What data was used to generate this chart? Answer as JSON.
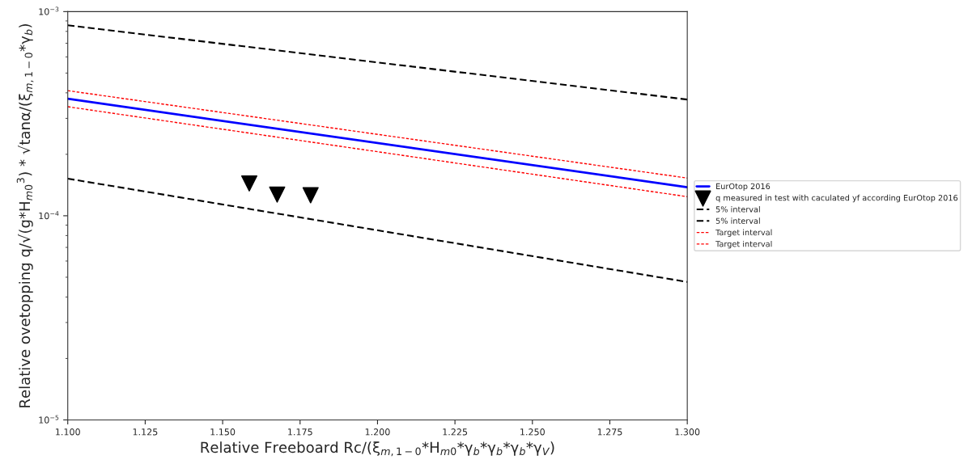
{
  "chart_data": {
    "type": "line",
    "xlabel": "Relative Freeboard Rc/(ξ$_{m,1−0}$*H$_{m0}$*γ$_{b}$*γ$_{b}$*γ$_{b}$*γ$_{V}$)",
    "ylabel": "Relative ovetopping q/√(g*H$_{m0}$$^{3}$) * √tanα/(ξ$_{m,1−0}$*γ$_{b}$)",
    "log": "y",
    "grid": false,
    "legend": "right",
    "xlim": [
      1.1,
      1.3
    ],
    "xticks": [
      {
        "value": 1.1,
        "label": "1.100"
      },
      {
        "value": 1.125,
        "label": "1.125"
      },
      {
        "value": 1.15,
        "label": "1.150"
      },
      {
        "value": 1.175,
        "label": "1.175"
      },
      {
        "value": 1.2,
        "label": "1.200"
      },
      {
        "value": 1.225,
        "label": "1.225"
      },
      {
        "value": 1.25,
        "label": "1.250"
      },
      {
        "value": 1.275,
        "label": "1.275"
      },
      {
        "value": 1.3,
        "label": "1.300"
      }
    ],
    "ylim": [
      1e-05,
      0.001
    ],
    "yticks": [
      {
        "value": 1e-05,
        "label": "10$^{−5}$"
      },
      {
        "value": 0.0001,
        "label": "10$^{−4}$"
      },
      {
        "value": 0.001,
        "label": "10$^{−3}$"
      }
    ],
    "series": [
      {
        "name": "EurOtop 2016",
        "color": "#0000ff",
        "line_style": "solid",
        "marker": "none",
        "x": [
          1.1,
          1.3
        ],
        "values": [
          0.000374,
          0.000138
        ]
      },
      {
        "name": "q measured in test with caculated yf according EurOtop 2016",
        "type": "scatter",
        "color": "#000000",
        "marker": "triangle",
        "x": [
          1.1586,
          1.1676,
          1.1784
        ],
        "values": [
          0.000144,
          0.000127,
          0.000126
        ]
      },
      {
        "name": "5% interval",
        "color": "#000000",
        "line_style": "dashed",
        "marker": "none",
        "x": [
          1.1,
          1.3
        ],
        "values": [
          0.000857,
          0.000371
        ]
      },
      {
        "name": "5% interval",
        "color": "#000000",
        "line_style": "dashed",
        "marker": "none",
        "x": [
          1.1,
          1.3
        ],
        "values": [
          0.000152,
          4.74e-05
        ]
      },
      {
        "name": "Target interval",
        "color": "#ff0000",
        "line_style": "dotted",
        "marker": "none",
        "x": [
          1.1,
          1.3
        ],
        "values": [
          0.00041,
          0.000153
        ]
      },
      {
        "name": "Target interval",
        "color": "#ff0000",
        "line_style": "dotted",
        "marker": "none",
        "x": [
          1.1,
          1.3
        ],
        "values": [
          0.000342,
          0.000124
        ]
      }
    ]
  }
}
